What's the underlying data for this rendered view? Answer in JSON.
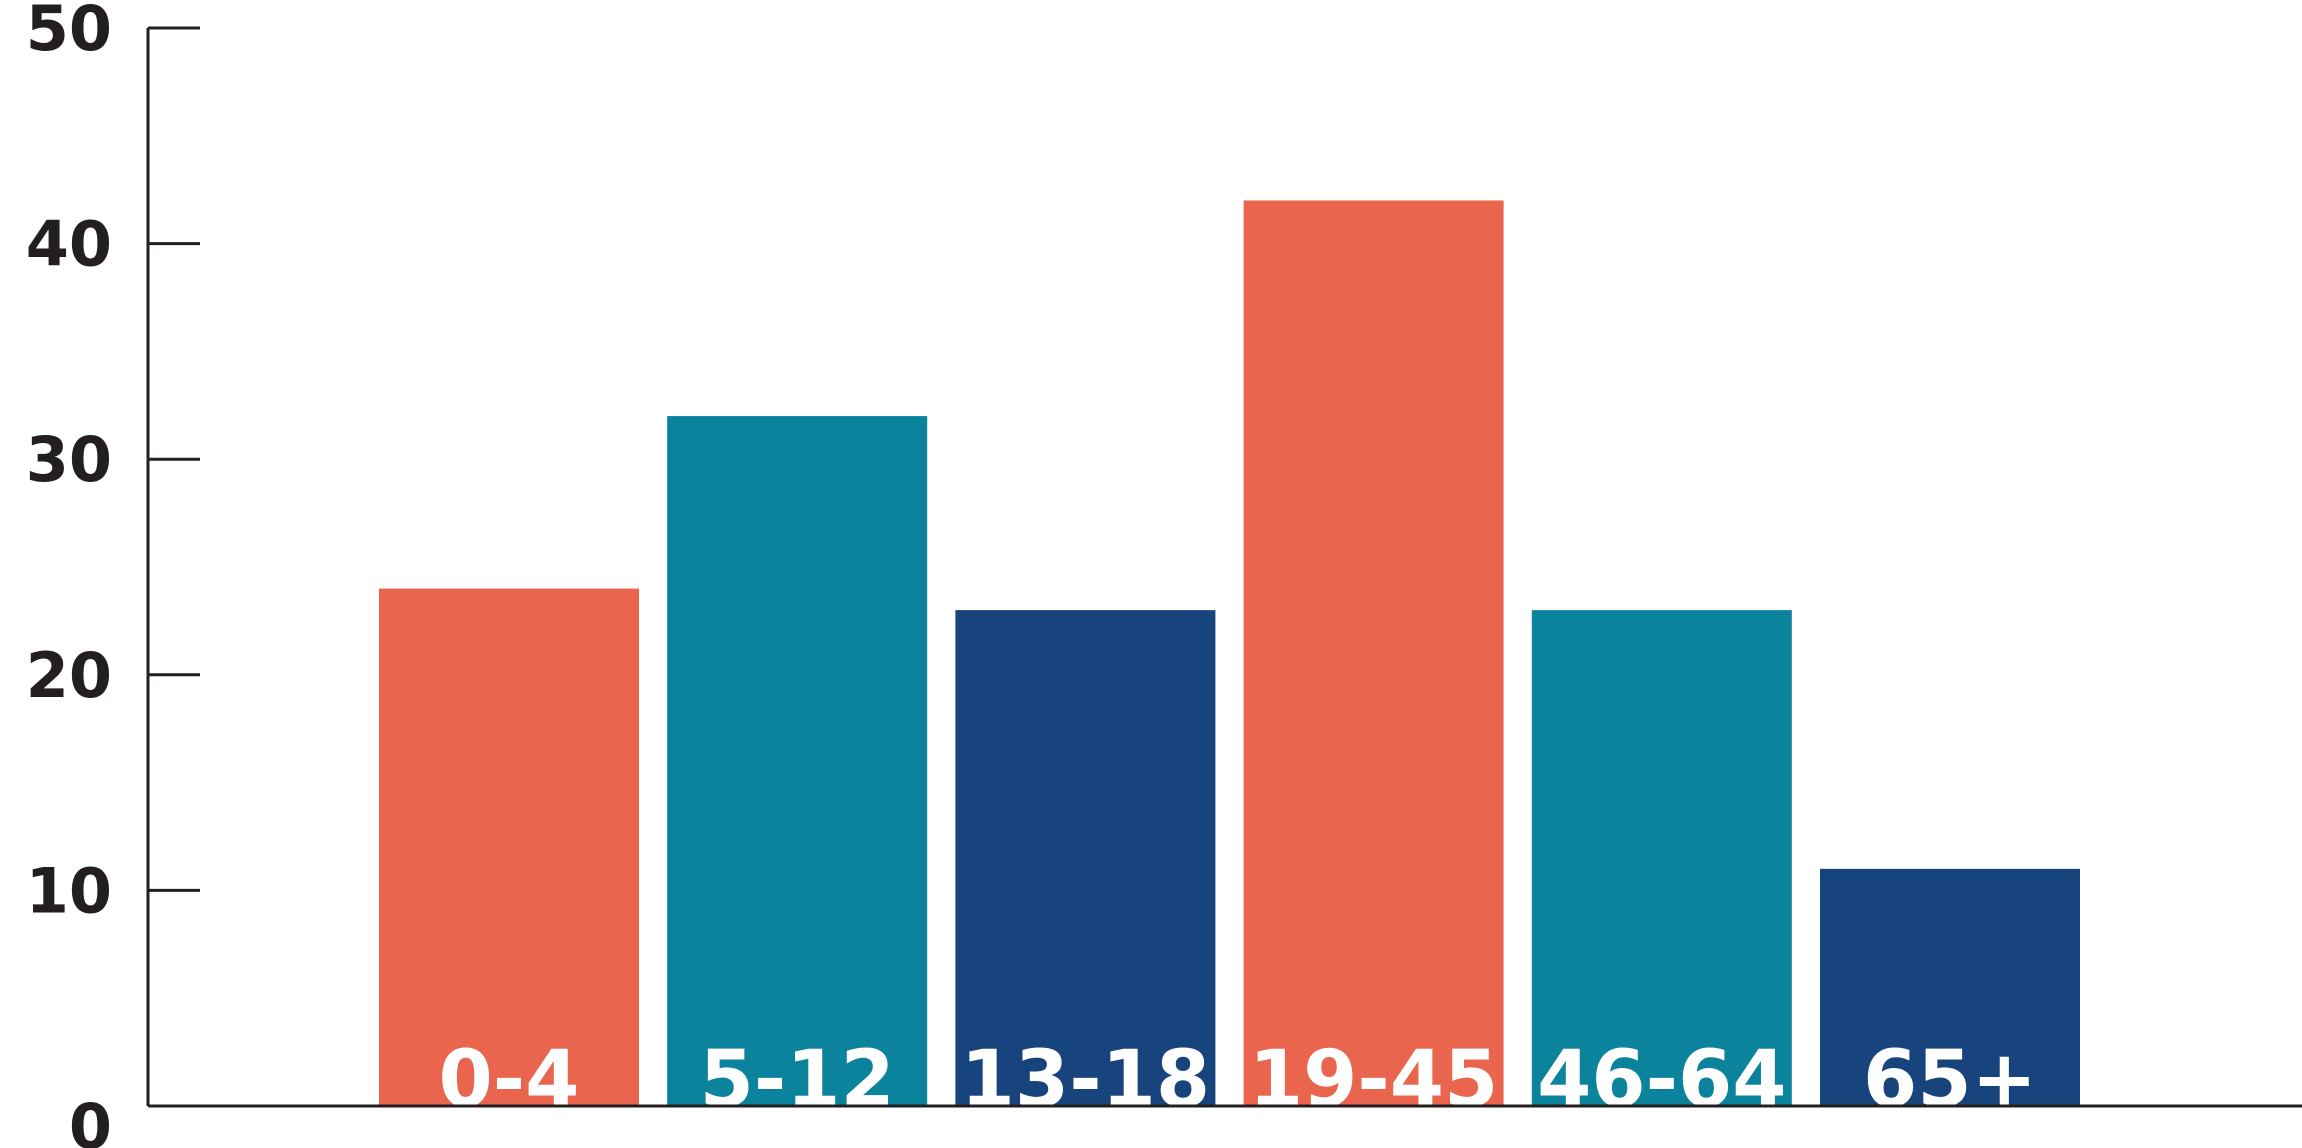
{
  "chart_data": {
    "type": "bar",
    "categories": [
      "0-4",
      "5-12",
      "13-18",
      "19-45",
      "46-64",
      "65+"
    ],
    "values": [
      24,
      32,
      23,
      42,
      23,
      11
    ],
    "bar_colors": [
      "#ea654e",
      "#0b839c",
      "#18447d",
      "#ea654e",
      "#0b839c",
      "#18447d"
    ],
    "title": "",
    "xlabel": "",
    "ylabel": "",
    "ylim": [
      0,
      50
    ],
    "yticks": [
      "0",
      "10",
      "20",
      "30",
      "40",
      "50"
    ],
    "grid": false,
    "legend": "none"
  }
}
